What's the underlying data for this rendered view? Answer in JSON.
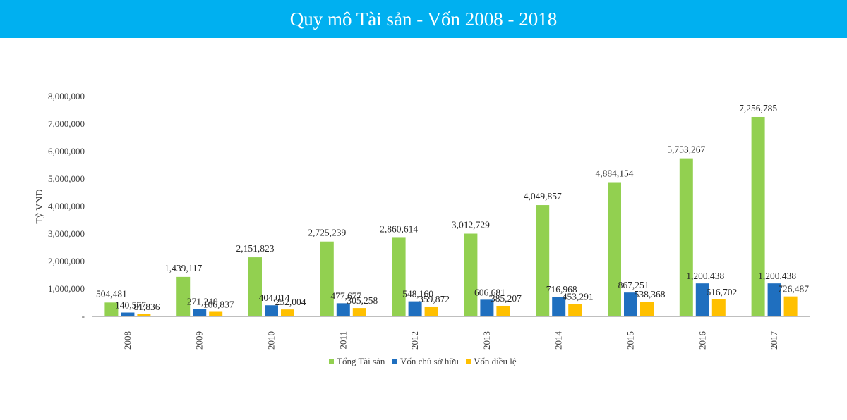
{
  "header": {
    "title": "Quy mô Tài sản - Vốn 2008 - 2018",
    "background_color": "#00b0f0"
  },
  "chart_data": {
    "type": "bar",
    "title": "Quy mô Tài sản - Vốn 2008 - 2018",
    "xlabel": "",
    "ylabel": "Tỷ VND",
    "ylim": [
      0,
      8000000
    ],
    "y_ticks": [
      0,
      1000000,
      2000000,
      3000000,
      4000000,
      5000000,
      6000000,
      7000000,
      8000000
    ],
    "y_tick_labels": [
      "-",
      "1,000,000",
      "2,000,000",
      "3,000,000",
      "4,000,000",
      "5,000,000",
      "6,000,000",
      "7,000,000",
      "8,000,000"
    ],
    "categories": [
      "2008",
      "2009",
      "2010",
      "2011",
      "2012",
      "2013",
      "2014",
      "2015",
      "2016",
      "2017"
    ],
    "grid": false,
    "legend_position": "bottom",
    "series": [
      {
        "name": "Tổng Tài sản",
        "color": "#92d050",
        "values": [
          504481,
          1439117,
          2151823,
          2725239,
          2860614,
          3012729,
          4049857,
          4884154,
          5753267,
          7256785
        ],
        "labels": [
          "504,481",
          "1,439,117",
          "2,151,823",
          "2,725,239",
          "2,860,614",
          "3,012,729",
          "4,049,857",
          "4,884,154",
          "5,753,267",
          "7,256,785"
        ]
      },
      {
        "name": "Vốn chủ sở hữu",
        "color": "#1f6fbf",
        "values": [
          140577,
          271240,
          404014,
          477677,
          548160,
          606681,
          716968,
          867251,
          1200438,
          1200438
        ],
        "labels": [
          "140,577",
          "271,240",
          "404,014",
          "477,677",
          "548,160",
          "606,681",
          "716,968",
          "867,251",
          "1,200,438",
          "1,200,438"
        ]
      },
      {
        "name": "Vốn điều lệ",
        "color": "#ffc000",
        "values": [
          81836,
          166837,
          252004,
          305258,
          359872,
          385207,
          453291,
          538368,
          616702,
          726487
        ],
        "labels": [
          "81,836",
          "166,837",
          "252,004",
          "305,258",
          "359,872",
          "385,207",
          "453,291",
          "538,368",
          "616,702",
          "726,487"
        ]
      }
    ]
  }
}
